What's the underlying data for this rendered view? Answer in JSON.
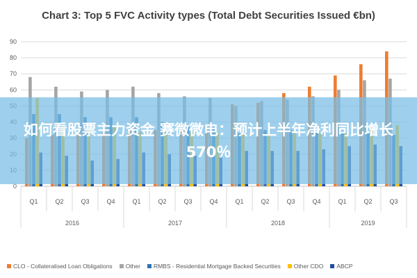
{
  "banner": {
    "headline": "如何看股票主力资金 赛微微电：预计上半年净利同比增长570％"
  },
  "chart_data": {
    "type": "bar",
    "title": "Chart 3: Top 5 FVC Activity types (Total Debt Securities Issued €bn)",
    "xlabel": "",
    "ylabel": "",
    "ylim": [
      0,
      90
    ],
    "yticks": [
      0,
      10,
      20,
      30,
      40,
      50,
      60,
      70,
      80,
      90
    ],
    "grid": true,
    "legend_position": "bottom",
    "categories": [
      "Q1",
      "Q2",
      "Q3",
      "Q4",
      "Q1",
      "Q2",
      "Q3",
      "Q4",
      "Q1",
      "Q2",
      "Q3",
      "Q4",
      "Q1",
      "Q2",
      "Q3"
    ],
    "groups": [
      {
        "label": "2016",
        "count": 4
      },
      {
        "label": "2017",
        "count": 4
      },
      {
        "label": "2018",
        "count": 4
      },
      {
        "label": "2019",
        "count": 3
      }
    ],
    "series": [
      {
        "name": "CLO - Collateralised Loan Obligations",
        "color": "#ED7D31",
        "values": [
          30,
          32,
          33,
          34,
          35,
          35,
          36,
          37,
          51,
          52,
          58,
          62,
          69,
          76,
          84
        ]
      },
      {
        "name": "Other",
        "color": "#A5A5A5",
        "values": [
          68,
          62,
          59,
          60,
          62,
          58,
          56,
          55,
          50,
          53,
          54,
          56,
          60,
          66,
          67
        ]
      },
      {
        "name": "RMBS - Residential Mortgage Backed Securities",
        "color": "#2E75B6",
        "values": [
          45,
          45,
          43,
          43,
          43,
          40,
          37,
          37,
          33,
          35,
          35,
          34,
          34,
          33,
          32
        ]
      },
      {
        "name": "Other CDO",
        "color": "#FFC000",
        "values": [
          55,
          38,
          36,
          37,
          34,
          34,
          34,
          34,
          34,
          33,
          34,
          33,
          33,
          37,
          38
        ]
      },
      {
        "name": "ABCP",
        "color": "#1F4E9C",
        "values": [
          21,
          19,
          16,
          17,
          21,
          20,
          19,
          18,
          22,
          22,
          22,
          23,
          25,
          26,
          25
        ]
      }
    ]
  }
}
